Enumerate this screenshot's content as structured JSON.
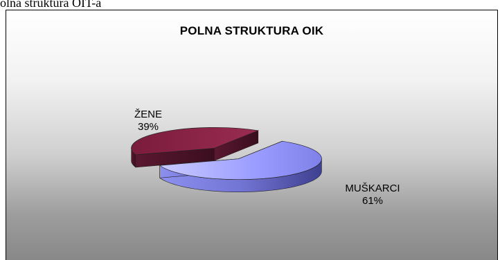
{
  "caption": "olna struktura OIT-a",
  "chart_data": {
    "type": "pie",
    "title": "POLNA STRUKTURA OIK",
    "slices": [
      {
        "category": "MUŠKARCI",
        "value": 61,
        "value_label": "61%",
        "color": "#9a9cff",
        "side_color": "#5f60b8"
      },
      {
        "category": "ŽENE",
        "value": 39,
        "value_label": "39%",
        "color": "#8b2448",
        "side_color": "#4a1426"
      }
    ]
  }
}
